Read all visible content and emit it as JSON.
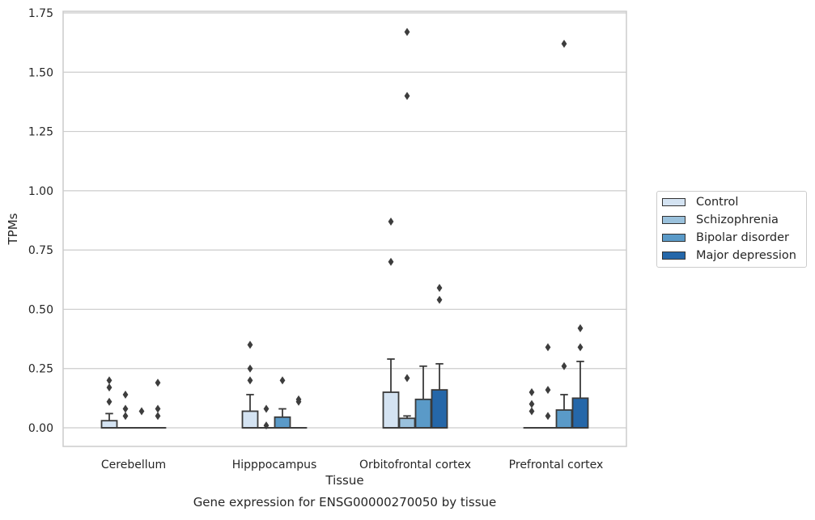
{
  "chart_data": {
    "type": "boxplot",
    "title": "Gene expression for ENSG00000270050 by tissue",
    "xlabel": "Tissue",
    "ylabel": "TPMs",
    "ylim": [
      -0.08,
      1.75
    ],
    "yticks": [
      "0.00",
      "0.25",
      "0.50",
      "0.75",
      "1.00",
      "1.25",
      "1.50",
      "1.75"
    ],
    "grid": "horizontal",
    "legend_position": "right",
    "categories": [
      "Cerebellum",
      "Hipppocampus",
      "Orbitofrontal cortex",
      "Prefrontal cortex"
    ],
    "series": [
      {
        "name": "Control",
        "color": "#d4e3f2",
        "boxes": [
          {
            "q1": 0.0,
            "median": 0.0,
            "q3": 0.03,
            "whisker_low": 0.0,
            "whisker_high": 0.06,
            "outliers": [
              0.11,
              0.17,
              0.2
            ]
          },
          {
            "q1": 0.0,
            "median": 0.0,
            "q3": 0.07,
            "whisker_low": 0.0,
            "whisker_high": 0.14,
            "outliers": [
              0.2,
              0.25,
              0.35
            ]
          },
          {
            "q1": 0.0,
            "median": 0.0,
            "q3": 0.15,
            "whisker_low": 0.0,
            "whisker_high": 0.29,
            "outliers": [
              0.7,
              0.87
            ]
          },
          {
            "q1": 0.0,
            "median": 0.0,
            "q3": 0.0,
            "whisker_low": 0.0,
            "whisker_high": 0.0,
            "outliers": [
              0.07,
              0.1,
              0.15
            ]
          }
        ]
      },
      {
        "name": "Schizophrenia",
        "color": "#9ac1dc",
        "boxes": [
          {
            "q1": 0.0,
            "median": 0.0,
            "q3": 0.0,
            "whisker_low": 0.0,
            "whisker_high": 0.0,
            "outliers": [
              0.05,
              0.08,
              0.14
            ]
          },
          {
            "q1": 0.0,
            "median": 0.0,
            "q3": 0.0,
            "whisker_low": 0.0,
            "whisker_high": 0.0,
            "outliers": [
              0.01,
              0.08
            ]
          },
          {
            "q1": 0.0,
            "median": 0.0,
            "q3": 0.04,
            "whisker_low": 0.0,
            "whisker_high": 0.05,
            "outliers": [
              0.21,
              1.4,
              1.67
            ]
          },
          {
            "q1": 0.0,
            "median": 0.0,
            "q3": 0.0,
            "whisker_low": 0.0,
            "whisker_high": 0.0,
            "outliers": [
              0.05,
              0.16,
              0.34
            ]
          }
        ]
      },
      {
        "name": "Bipolar disorder",
        "color": "#5a9ac8",
        "boxes": [
          {
            "q1": 0.0,
            "median": 0.0,
            "q3": 0.0,
            "whisker_low": 0.0,
            "whisker_high": 0.0,
            "outliers": [
              0.07
            ]
          },
          {
            "q1": 0.0,
            "median": 0.0,
            "q3": 0.045,
            "whisker_low": 0.0,
            "whisker_high": 0.08,
            "outliers": [
              0.2
            ]
          },
          {
            "q1": 0.0,
            "median": 0.0,
            "q3": 0.12,
            "whisker_low": 0.0,
            "whisker_high": 0.26,
            "outliers": []
          },
          {
            "q1": 0.0,
            "median": 0.0,
            "q3": 0.075,
            "whisker_low": 0.0,
            "whisker_high": 0.14,
            "outliers": [
              0.26,
              1.62
            ]
          }
        ]
      },
      {
        "name": "Major depression",
        "color": "#2567a9",
        "boxes": [
          {
            "q1": 0.0,
            "median": 0.0,
            "q3": 0.0,
            "whisker_low": 0.0,
            "whisker_high": 0.0,
            "outliers": [
              0.05,
              0.08,
              0.19
            ]
          },
          {
            "q1": 0.0,
            "median": 0.0,
            "q3": 0.0,
            "whisker_low": 0.0,
            "whisker_high": 0.0,
            "outliers": [
              0.11,
              0.12
            ]
          },
          {
            "q1": 0.0,
            "median": 0.0,
            "q3": 0.16,
            "whisker_low": 0.0,
            "whisker_high": 0.27,
            "outliers": [
              0.54,
              0.59
            ]
          },
          {
            "q1": 0.0,
            "median": 0.0,
            "q3": 0.125,
            "whisker_low": 0.0,
            "whisker_high": 0.28,
            "outliers": [
              0.34,
              0.42
            ]
          }
        ]
      }
    ]
  }
}
